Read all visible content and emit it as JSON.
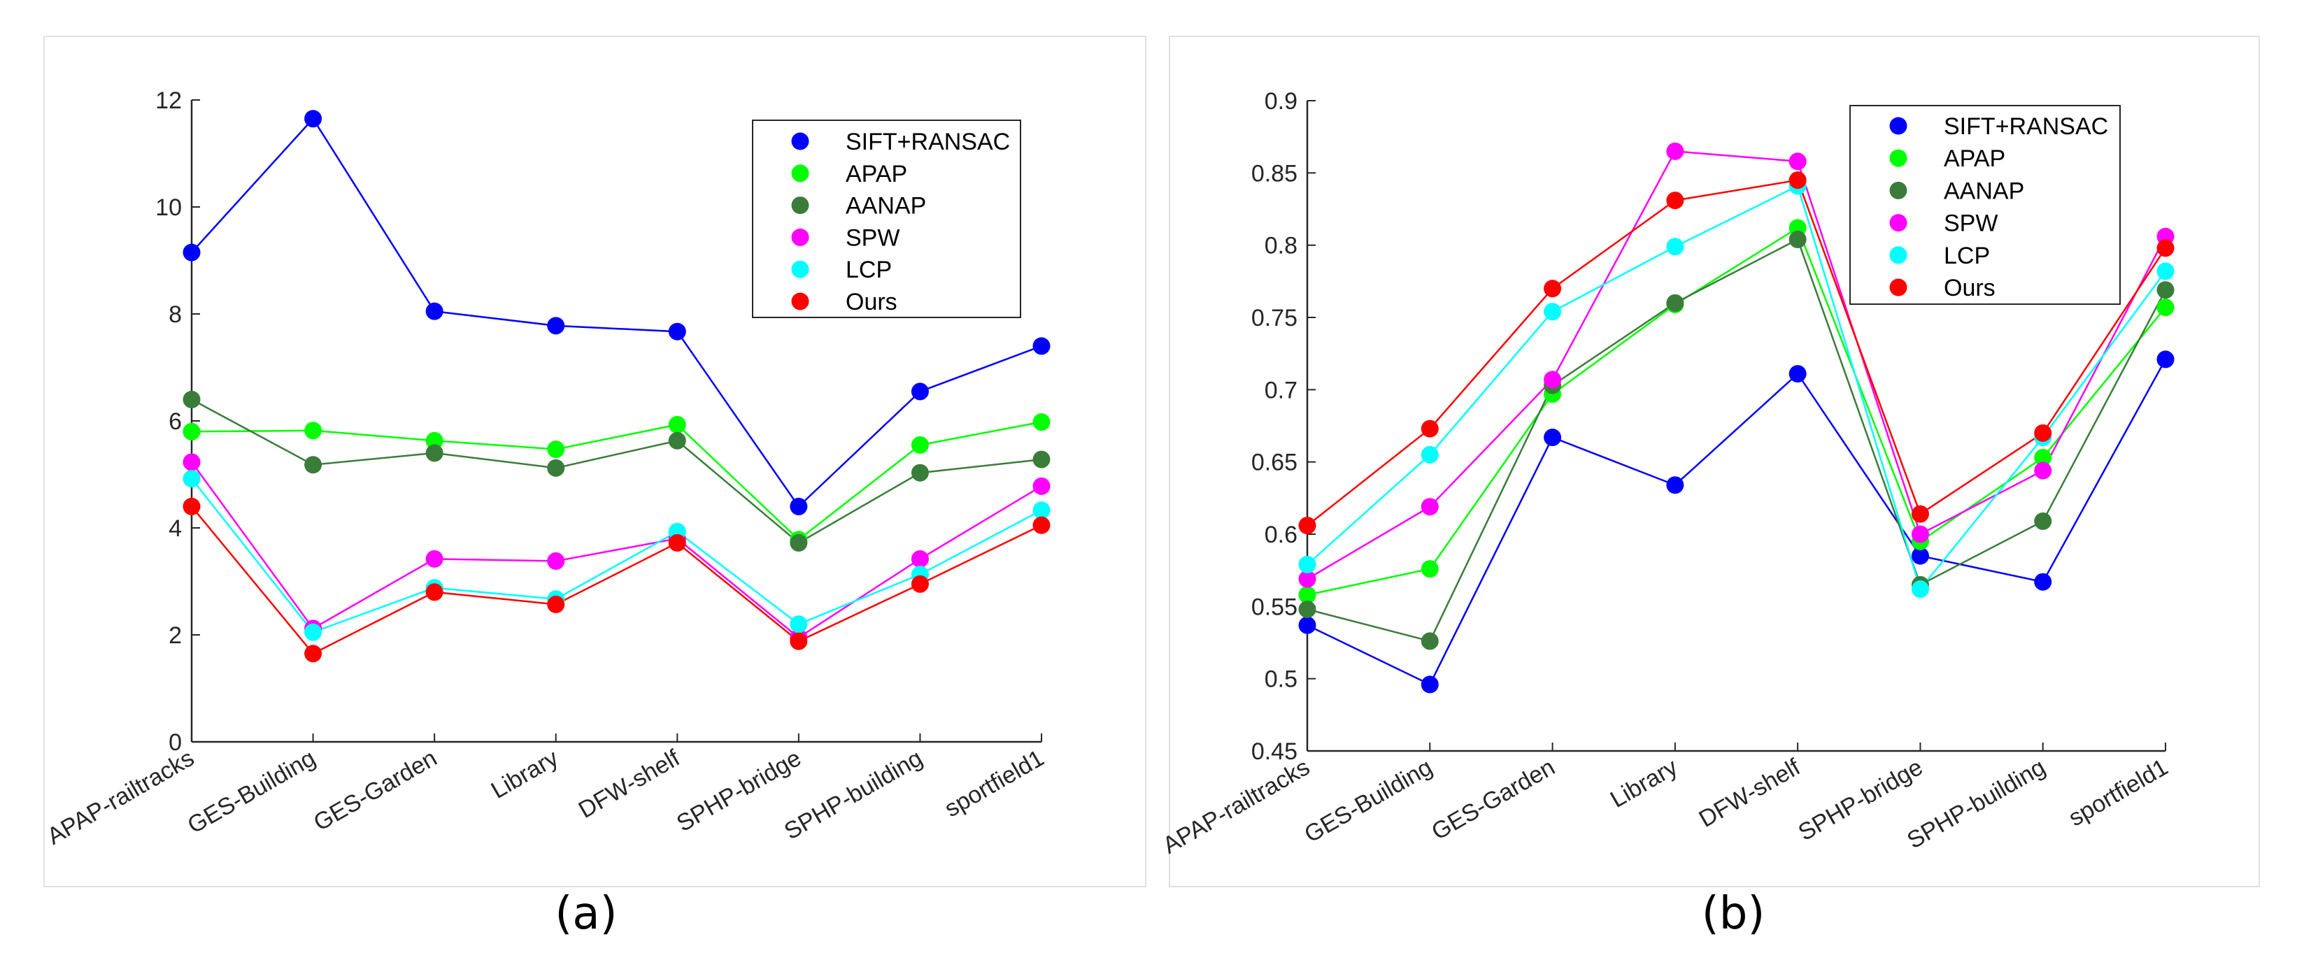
{
  "chart_data": [
    {
      "type": "line",
      "caption": "(a)",
      "categories": [
        "APAP-railtracks",
        "GES-Building",
        "GES-Garden",
        "Library",
        "DFW-shelf",
        "SPHP-bridge",
        "SPHP-building",
        "sportfield1"
      ],
      "ylim": [
        0,
        12
      ],
      "yticks": [
        "0",
        "2",
        "4",
        "6",
        "8",
        "10",
        "12"
      ],
      "ytick_values": [
        0,
        2,
        4,
        6,
        8,
        10,
        12
      ],
      "legend_position": "top-right",
      "grid": false,
      "series": [
        {
          "name": "SIFT+RANSAC",
          "color": "#0000ff",
          "values": [
            9.15,
            11.65,
            8.05,
            7.78,
            7.67,
            4.4,
            6.55,
            7.4
          ]
        },
        {
          "name": "APAP",
          "color": "#00ff00",
          "values": [
            5.8,
            5.82,
            5.63,
            5.47,
            5.93,
            3.78,
            5.55,
            5.98
          ]
        },
        {
          "name": "AANAP",
          "color": "#3a7d3a",
          "values": [
            6.4,
            5.18,
            5.4,
            5.12,
            5.63,
            3.72,
            5.03,
            5.28
          ]
        },
        {
          "name": "SPW",
          "color": "#ff00ff",
          "values": [
            5.23,
            2.12,
            3.42,
            3.38,
            3.8,
            1.95,
            3.42,
            4.78
          ]
        },
        {
          "name": "LCP",
          "color": "#00ffff",
          "values": [
            4.92,
            2.05,
            2.88,
            2.67,
            3.93,
            2.2,
            3.13,
            4.33
          ]
        },
        {
          "name": "Ours",
          "color": "#ff0000",
          "values": [
            4.4,
            1.65,
            2.8,
            2.57,
            3.72,
            1.88,
            2.95,
            4.05
          ]
        }
      ]
    },
    {
      "type": "line",
      "caption": "(b)",
      "categories": [
        "APAP-railtracks",
        "GES-Building",
        "GES-Garden",
        "Library",
        "DFW-shelf",
        "SPHP-bridge",
        "SPHP-building",
        "sportfield1"
      ],
      "ylim": [
        0.45,
        0.9
      ],
      "yticks": [
        "0.45",
        "0.5",
        "0.55",
        "0.6",
        "0.65",
        "0.7",
        "0.75",
        "0.8",
        "0.85",
        "0.9"
      ],
      "ytick_values": [
        0.45,
        0.5,
        0.55,
        0.6,
        0.65,
        0.7,
        0.75,
        0.8,
        0.85,
        0.9
      ],
      "legend_position": "top-right",
      "grid": false,
      "series": [
        {
          "name": "SIFT+RANSAC",
          "color": "#0000ff",
          "values": [
            0.537,
            0.496,
            0.667,
            0.634,
            0.711,
            0.585,
            0.567,
            0.721
          ]
        },
        {
          "name": "APAP",
          "color": "#00ff00",
          "values": [
            0.558,
            0.576,
            0.697,
            0.759,
            0.812,
            0.595,
            0.653,
            0.757
          ]
        },
        {
          "name": "AANAP",
          "color": "#3a7d3a",
          "values": [
            0.548,
            0.526,
            0.703,
            0.76,
            0.804,
            0.565,
            0.609,
            0.769
          ]
        },
        {
          "name": "SPW",
          "color": "#ff00ff",
          "values": [
            0.569,
            0.619,
            0.707,
            0.865,
            0.858,
            0.6,
            0.644,
            0.806
          ]
        },
        {
          "name": "LCP",
          "color": "#00ffff",
          "values": [
            0.579,
            0.655,
            0.754,
            0.799,
            0.841,
            0.562,
            0.667,
            0.782
          ]
        },
        {
          "name": "Ours",
          "color": "#ff0000",
          "values": [
            0.606,
            0.673,
            0.77,
            0.831,
            0.845,
            0.614,
            0.67,
            0.798
          ]
        }
      ]
    }
  ]
}
